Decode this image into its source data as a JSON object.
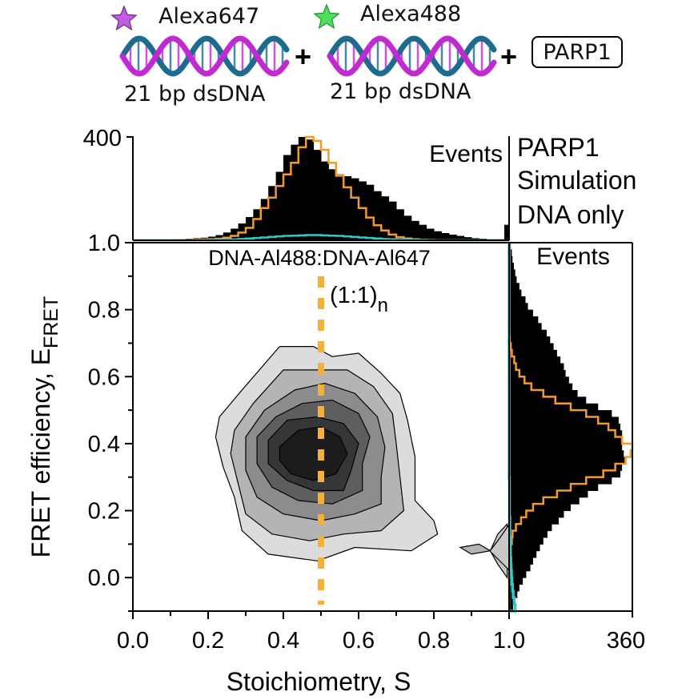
{
  "header": {
    "dna1_dye": "Alexa647",
    "dna1_label": "21 bp dsDNA",
    "dna2_dye": "Alexa488",
    "dna2_label": "21 bp dsDNA",
    "plus": "+",
    "protein": "PARP1"
  },
  "colors": {
    "parp1": "#000000",
    "simulation": "#f29a2e",
    "dna_only": "#2fc9c9",
    "dye647_star": "#c35be0",
    "dye488_star": "#4be05c",
    "dna_strand_a": "#c12ad1",
    "dna_strand_b": "#1d6b8f",
    "guide_line": "#f2b23a"
  },
  "chart_data": [
    {
      "id": "main",
      "type": "contour",
      "xlabel": "Stoichiometry, S",
      "ylabel_main": "FRET efficiency, E",
      "ylabel_sub": "FRET",
      "xlim": [
        0.0,
        1.0
      ],
      "ylim": [
        -0.1,
        1.0
      ],
      "xticks": [
        "0.0",
        "0.2",
        "0.4",
        "0.6",
        "0.8",
        "1.0"
      ],
      "yticks": [
        "0.0",
        "0.2",
        "0.4",
        "0.6",
        "0.8",
        "1.0"
      ],
      "annotation": "DNA-Al488:DNA-Al647",
      "guide_label": "(1:1)",
      "guide_label_sub": "n",
      "guide_x": 0.5,
      "contour_levels": [
        {
          "level": 1,
          "fill": "#dcdcdc",
          "points": [
            [
              0.23,
              0.48
            ],
            [
              0.29,
              0.56
            ],
            [
              0.39,
              0.69
            ],
            [
              0.48,
              0.69
            ],
            [
              0.53,
              0.66
            ],
            [
              0.6,
              0.67
            ],
            [
              0.66,
              0.61
            ],
            [
              0.71,
              0.55
            ],
            [
              0.73,
              0.47
            ],
            [
              0.75,
              0.36
            ],
            [
              0.75,
              0.23
            ],
            [
              0.8,
              0.17
            ],
            [
              0.81,
              0.13
            ],
            [
              0.74,
              0.08
            ],
            [
              0.59,
              0.09
            ],
            [
              0.49,
              0.05
            ],
            [
              0.36,
              0.07
            ],
            [
              0.29,
              0.14
            ],
            [
              0.27,
              0.24
            ],
            [
              0.24,
              0.33
            ],
            [
              0.22,
              0.42
            ]
          ]
        },
        {
          "level": 2,
          "fill": "#b4b4b4",
          "points": [
            [
              0.27,
              0.44
            ],
            [
              0.32,
              0.52
            ],
            [
              0.4,
              0.62
            ],
            [
              0.5,
              0.62
            ],
            [
              0.57,
              0.62
            ],
            [
              0.64,
              0.57
            ],
            [
              0.69,
              0.49
            ],
            [
              0.7,
              0.4
            ],
            [
              0.71,
              0.3
            ],
            [
              0.72,
              0.2
            ],
            [
              0.66,
              0.14
            ],
            [
              0.56,
              0.13
            ],
            [
              0.47,
              0.11
            ],
            [
              0.37,
              0.13
            ],
            [
              0.3,
              0.19
            ],
            [
              0.28,
              0.28
            ],
            [
              0.26,
              0.37
            ]
          ]
        },
        {
          "level": 3,
          "fill": "#8c8c8c",
          "points": [
            [
              0.3,
              0.42
            ],
            [
              0.35,
              0.5
            ],
            [
              0.43,
              0.56
            ],
            [
              0.51,
              0.58
            ],
            [
              0.59,
              0.55
            ],
            [
              0.65,
              0.48
            ],
            [
              0.67,
              0.39
            ],
            [
              0.66,
              0.3
            ],
            [
              0.66,
              0.22
            ],
            [
              0.59,
              0.19
            ],
            [
              0.5,
              0.17
            ],
            [
              0.4,
              0.19
            ],
            [
              0.33,
              0.24
            ],
            [
              0.3,
              0.32
            ]
          ]
        },
        {
          "level": 4,
          "fill": "#5e5e5e",
          "points": [
            [
              0.33,
              0.42
            ],
            [
              0.38,
              0.48
            ],
            [
              0.45,
              0.52
            ],
            [
              0.53,
              0.53
            ],
            [
              0.6,
              0.49
            ],
            [
              0.63,
              0.42
            ],
            [
              0.61,
              0.34
            ],
            [
              0.61,
              0.26
            ],
            [
              0.53,
              0.22
            ],
            [
              0.44,
              0.23
            ],
            [
              0.37,
              0.27
            ],
            [
              0.33,
              0.34
            ]
          ]
        },
        {
          "level": 5,
          "fill": "#363636",
          "points": [
            [
              0.36,
              0.41
            ],
            [
              0.41,
              0.47
            ],
            [
              0.49,
              0.48
            ],
            [
              0.56,
              0.46
            ],
            [
              0.6,
              0.4
            ],
            [
              0.58,
              0.32
            ],
            [
              0.56,
              0.26
            ],
            [
              0.48,
              0.26
            ],
            [
              0.41,
              0.29
            ],
            [
              0.36,
              0.34
            ]
          ]
        },
        {
          "level": 6,
          "fill": "#1c1c1c",
          "points": [
            [
              0.39,
              0.39
            ],
            [
              0.44,
              0.44
            ],
            [
              0.5,
              0.45
            ],
            [
              0.55,
              0.42
            ],
            [
              0.57,
              0.37
            ],
            [
              0.54,
              0.31
            ],
            [
              0.48,
              0.29
            ],
            [
              0.42,
              0.31
            ],
            [
              0.39,
              0.35
            ]
          ]
        }
      ],
      "small_contours": [
        {
          "fill": "#b4b4b4",
          "points": [
            [
              0.87,
              0.09
            ],
            [
              0.9,
              0.07
            ],
            [
              0.95,
              0.08
            ],
            [
              0.92,
              0.1
            ]
          ]
        },
        {
          "fill": "#c8c8c8",
          "points": [
            [
              0.95,
              0.08
            ],
            [
              0.97,
              0.04
            ],
            [
              0.995,
              0.0
            ],
            [
              0.995,
              0.16
            ],
            [
              0.97,
              0.13
            ]
          ]
        }
      ]
    },
    {
      "id": "top",
      "type": "histogram",
      "ylabel": "Events",
      "ymax_label": "400",
      "ylim": [
        0,
        400
      ],
      "legend": [
        "PARP1",
        "Simulation",
        "DNA only"
      ],
      "legend_position": "right",
      "bin_start": 0.0,
      "bin_width": 0.02,
      "series": [
        {
          "name": "PARP1",
          "style": "fill",
          "values": [
            0,
            0,
            1,
            1,
            2,
            3,
            4,
            6,
            8,
            10,
            14,
            20,
            30,
            45,
            65,
            90,
            120,
            160,
            210,
            265,
            330,
            370,
            400,
            390,
            350,
            305,
            275,
            255,
            248,
            240,
            228,
            215,
            190,
            170,
            150,
            120,
            95,
            75,
            60,
            45,
            35,
            28,
            22,
            17,
            12,
            8,
            6,
            4,
            4,
            4
          ]
        },
        {
          "name": "Simulation",
          "style": "step",
          "values": [
            0,
            0,
            0,
            0,
            0,
            0,
            0,
            1,
            2,
            3,
            4,
            6,
            10,
            17,
            30,
            48,
            82,
            125,
            165,
            210,
            255,
            300,
            360,
            400,
            385,
            350,
            300,
            250,
            205,
            165,
            125,
            88,
            58,
            38,
            22,
            12,
            7,
            4,
            2,
            1,
            0,
            0,
            0,
            0,
            0,
            0,
            0,
            0,
            0,
            0
          ]
        },
        {
          "name": "DNA only",
          "style": "step",
          "values": [
            0,
            0,
            0,
            0,
            0,
            0,
            0,
            0,
            0,
            0,
            0,
            1,
            2,
            3,
            5,
            7,
            9,
            11,
            13,
            15,
            17,
            18,
            19,
            20,
            20,
            19,
            18,
            17,
            15,
            13,
            11,
            9,
            7,
            5,
            4,
            3,
            2,
            1,
            1,
            0,
            0,
            0,
            0,
            0,
            0,
            0,
            0,
            0,
            0,
            0
          ]
        }
      ],
      "edge_spike": 60
    },
    {
      "id": "right",
      "type": "histogram",
      "xlabel": "Events",
      "xmax_label": "360",
      "xlim": [
        0,
        360
      ],
      "bin_start": -0.1,
      "bin_width": 0.02,
      "series": [
        {
          "name": "PARP1",
          "style": "fill",
          "values": [
            12,
            18,
            24,
            30,
            40,
            50,
            62,
            70,
            80,
            90,
            100,
            112,
            125,
            145,
            160,
            180,
            205,
            230,
            260,
            300,
            325,
            330,
            340,
            335,
            330,
            330,
            330,
            325,
            320,
            300,
            260,
            225,
            200,
            185,
            175,
            165,
            160,
            150,
            140,
            130,
            120,
            110,
            95,
            85,
            70,
            55,
            48,
            36,
            30,
            22,
            18,
            14,
            10,
            8,
            5
          ]
        },
        {
          "name": "Simulation",
          "style": "step",
          "values": [
            0,
            0,
            0,
            0,
            0,
            0,
            1,
            2,
            3,
            5,
            8,
            10,
            20,
            35,
            50,
            70,
            100,
            140,
            180,
            225,
            275,
            310,
            340,
            355,
            360,
            330,
            310,
            290,
            260,
            225,
            180,
            135,
            100,
            65,
            45,
            30,
            20,
            15,
            8,
            5,
            2,
            1,
            0,
            0,
            0,
            0,
            0,
            0,
            0,
            0,
            0,
            0,
            0,
            0,
            0
          ]
        },
        {
          "name": "DNA only",
          "style": "step",
          "values": [
            18,
            15,
            12,
            10,
            8,
            7,
            6,
            5,
            4,
            3,
            3,
            2,
            2,
            2,
            1,
            1,
            1,
            1,
            1,
            1,
            0,
            0,
            0,
            0,
            0,
            0,
            0,
            0,
            0,
            0,
            0,
            0,
            0,
            0,
            0,
            0,
            0,
            0,
            0,
            0,
            0,
            0,
            0,
            0,
            0,
            0,
            0,
            0,
            0,
            0,
            0,
            0,
            0,
            0,
            0
          ]
        }
      ]
    }
  ]
}
